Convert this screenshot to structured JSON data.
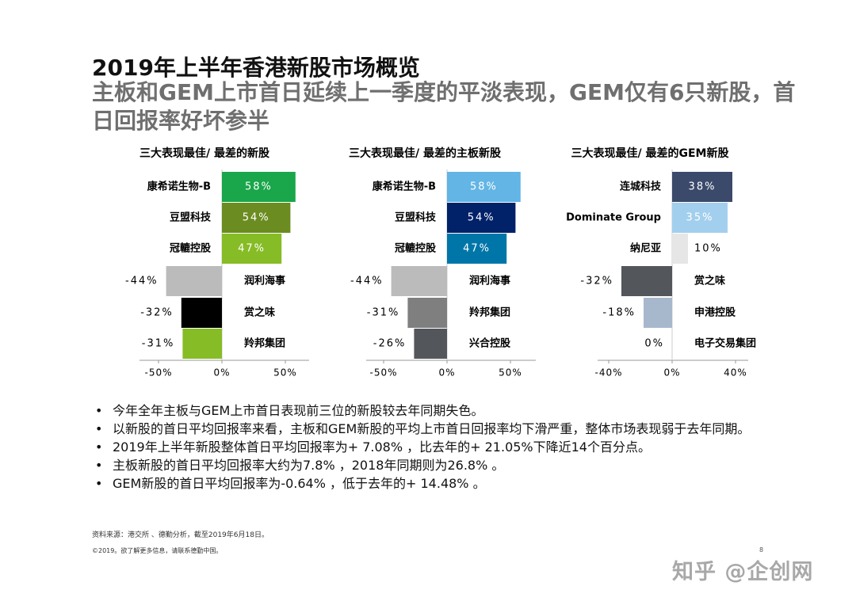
{
  "title_line1": "2019年上半年香港新股市场概览",
  "title_line2": "主板和GEM上市首日延续上一季度的平淡表现，GEM仅有6只新股，首日回报率好坏参半",
  "chart_data": [
    {
      "type": "bar",
      "orientation": "horizontal",
      "title": "三大表现最佳/ 最差的新股",
      "categories": [
        "康希诺生物-B",
        "豆盟科技",
        "冠轆控股",
        "润利海事",
        "赏之味",
        "羚邦集团"
      ],
      "values": [
        58,
        54,
        47,
        -44,
        -32,
        -31
      ],
      "value_labels": [
        "58%",
        "54%",
        "47%",
        "-44%",
        "-32%",
        "-31%"
      ],
      "colors": [
        "#1aa64a",
        "#6b8c21",
        "#86bc25",
        "#bbbbbb",
        "#000000",
        "#86bc25"
      ],
      "xlim": [
        -50,
        50
      ],
      "xticks": [
        -50,
        0,
        50
      ],
      "xtick_labels": [
        "-50%",
        "0%",
        "50%"
      ],
      "ylim_extend": 60
    },
    {
      "type": "bar",
      "orientation": "horizontal",
      "title": "三大表现最佳/ 最差的主板新股",
      "categories": [
        "康希诺生物-B",
        "豆盟科技",
        "冠轆控股",
        "润利海事",
        "羚邦集团",
        "兴合控股"
      ],
      "values": [
        58,
        54,
        47,
        -44,
        -31,
        -26
      ],
      "value_labels": [
        "58%",
        "54%",
        "47%",
        "-44%",
        "-31%",
        "-26%"
      ],
      "colors": [
        "#62b5e5",
        "#012169",
        "#0076a8",
        "#bbbbbb",
        "#7f7f7f",
        "#53565a"
      ],
      "xlim": [
        -50,
        50
      ],
      "xticks": [
        -50,
        0,
        50
      ],
      "xtick_labels": [
        "-50%",
        "0%",
        "50%"
      ]
    },
    {
      "type": "bar",
      "orientation": "horizontal",
      "title": "三大表现最佳/ 最差的GEM新股",
      "categories": [
        "连城科技",
        "Dominate Group",
        "纳尼亚",
        "赏之味",
        "申港控股",
        "电子交易集团"
      ],
      "values": [
        38,
        35,
        10,
        -32,
        -18,
        0
      ],
      "value_labels": [
        "38%",
        "35%",
        "10%",
        "-32%",
        "-18%",
        "0%"
      ],
      "colors": [
        "#3b4a6b",
        "#a3cfee",
        "#e6e6e6",
        "#53565a",
        "#a8b8cc",
        "#ffffff"
      ],
      "xlim": [
        -40,
        40
      ],
      "xticks": [
        -40,
        0,
        40
      ],
      "xtick_labels": [
        "-40%",
        "0%",
        "40%"
      ]
    }
  ],
  "bullets": [
    "今年全年主板与GEM上市首日表现前三位的新股较去年同期失色。",
    "以新股的首日平均回报率来看，主板和GEM新股的平均上市首日回报率均下滑严重，整体市场表现弱于去年同期。",
    "2019年上半年新股整体首日平均回报率为+ 7.08% ，比去年的+ 21.05%下降近14个百分点。",
    "主板新股的首日平均回报率大约为7.8% ，2018年同期则为26.8% 。",
    "GEM新股的首日平均回报率为-0.64% ，低于去年的+ 14.48% 。"
  ],
  "bullet_symbol": "•",
  "source": "资料来源：港交所 、德勤分析，截至2019年6月18日。",
  "copyright": "©2019。欲了解更多信息，请联系德勤中国。",
  "page_number": "8",
  "watermark": "知乎 @企创网"
}
